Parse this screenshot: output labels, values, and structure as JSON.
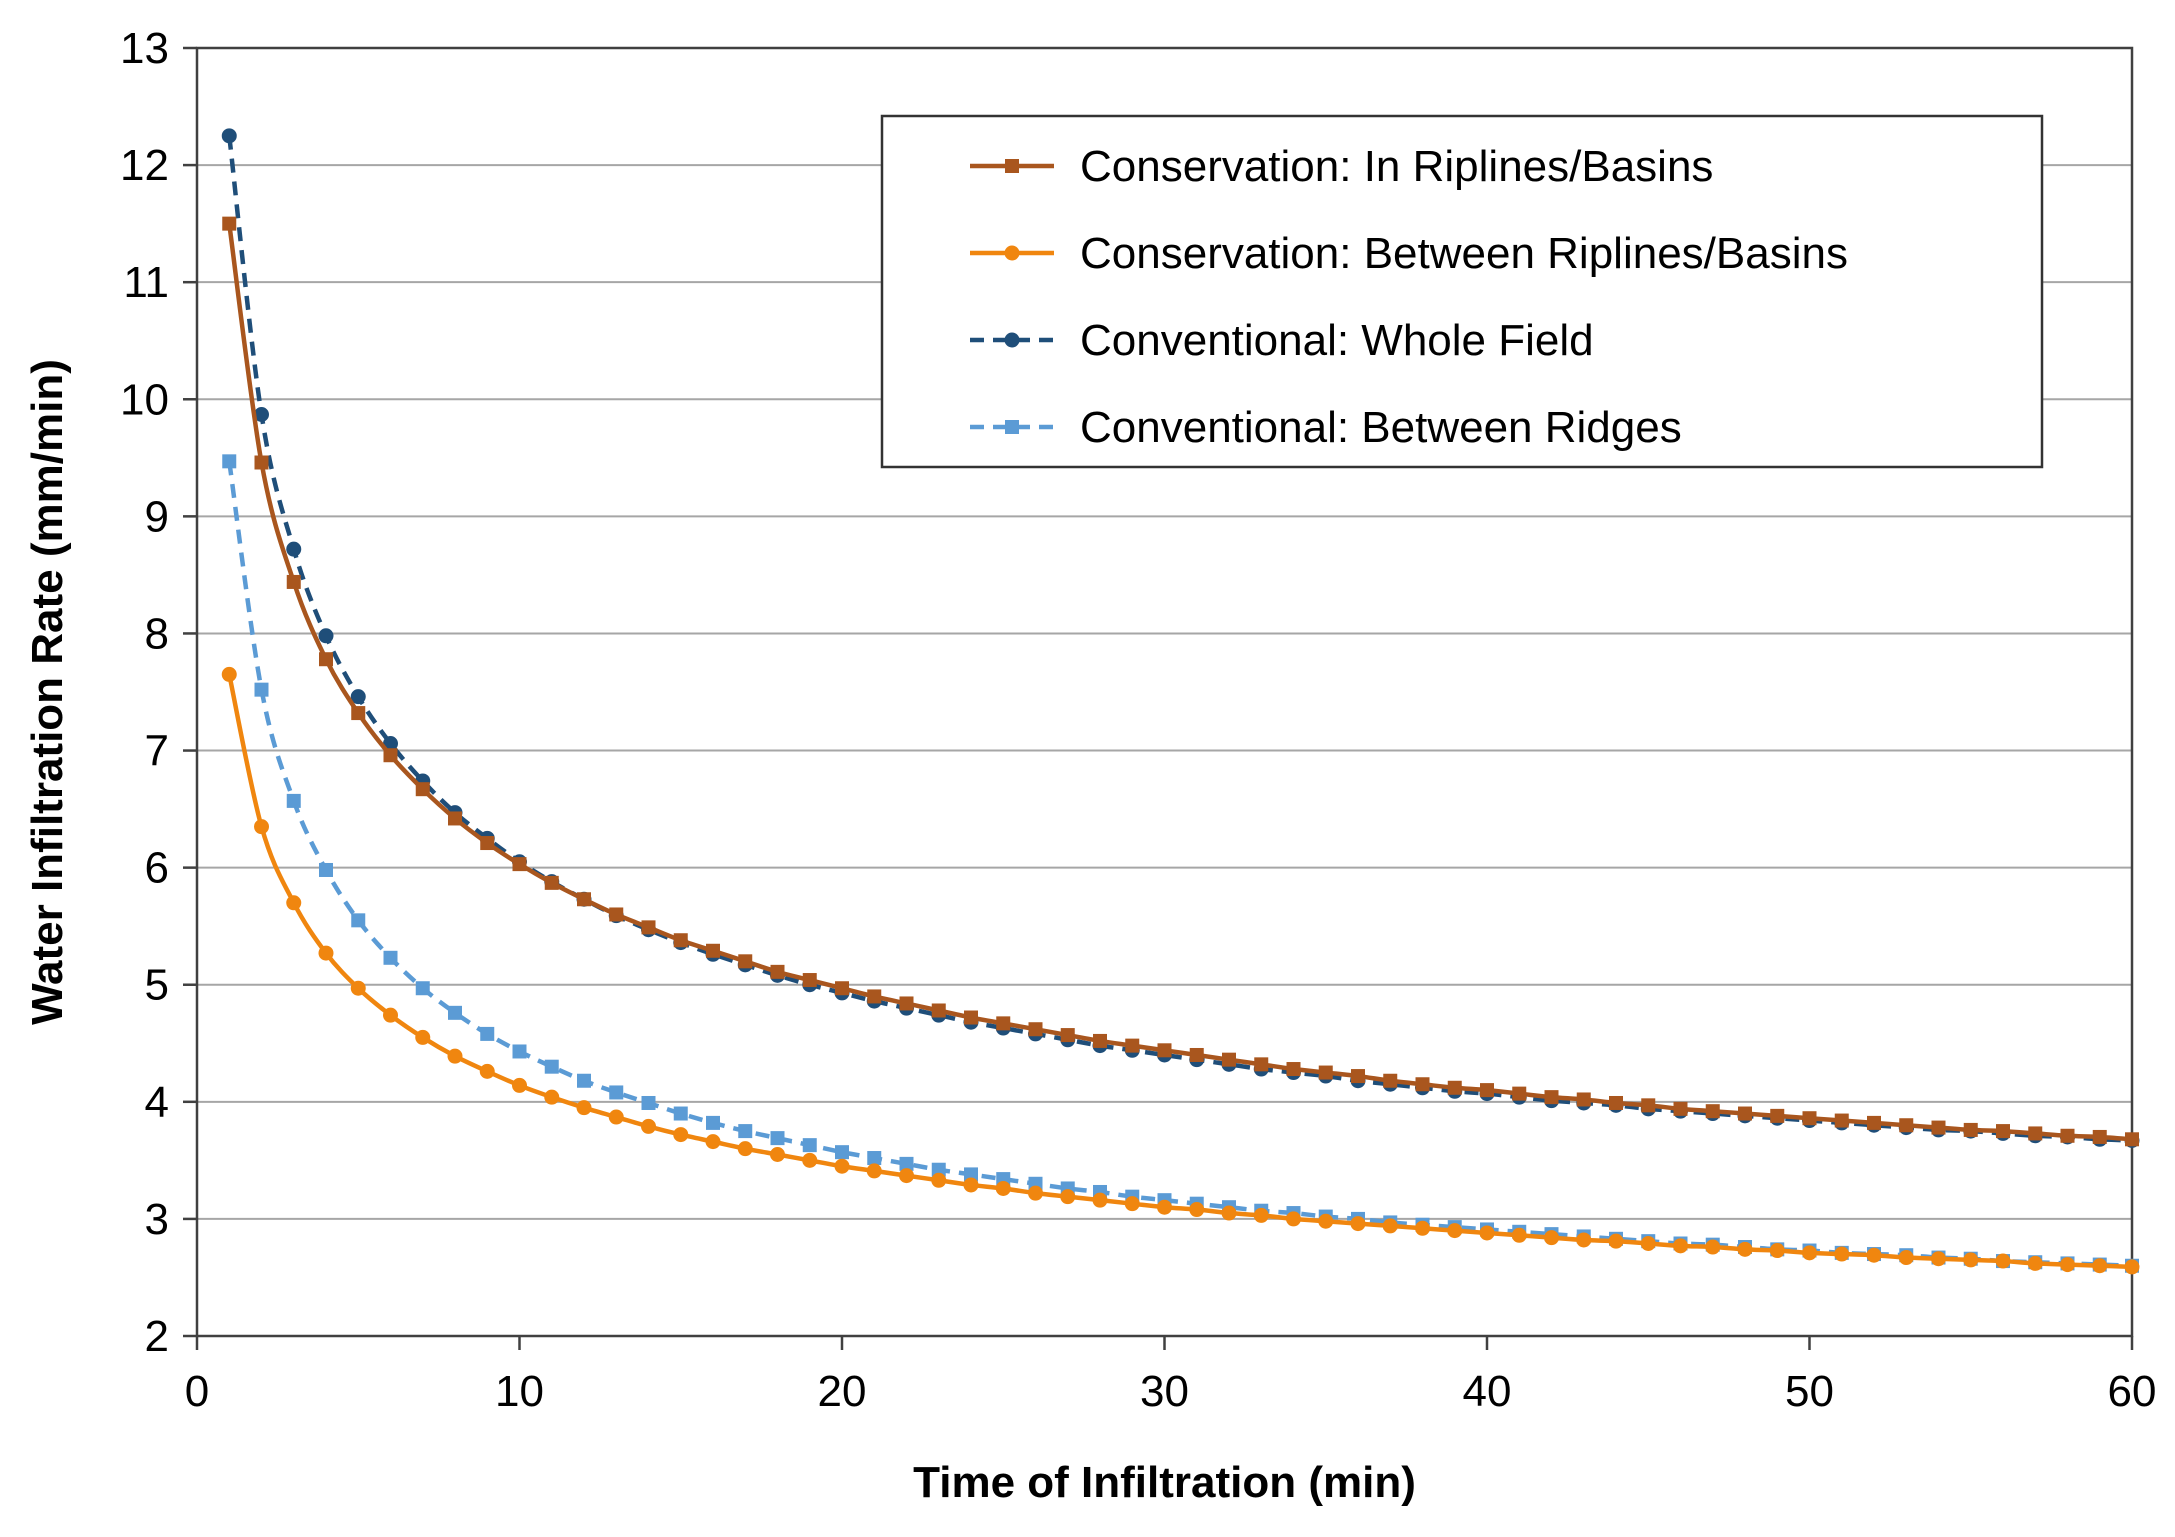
{
  "chart_data": {
    "type": "line",
    "title": "",
    "xlabel": "Time of Infiltration (min)",
    "ylabel": "Water Infiltration Rate (mm/min)",
    "xlim": [
      0,
      60
    ],
    "ylim": [
      2,
      13
    ],
    "xticks": [
      0,
      10,
      20,
      30,
      40,
      50,
      60
    ],
    "yticks": [
      2,
      3,
      4,
      5,
      6,
      7,
      8,
      9,
      10,
      11,
      12,
      13
    ],
    "grid": "horizontal",
    "legend_position": "top-right",
    "x": [
      1,
      2,
      3,
      4,
      5,
      6,
      7,
      8,
      9,
      10,
      11,
      12,
      13,
      14,
      15,
      16,
      17,
      18,
      19,
      20,
      21,
      22,
      23,
      24,
      25,
      26,
      27,
      28,
      29,
      30,
      31,
      32,
      33,
      34,
      35,
      36,
      37,
      38,
      39,
      40,
      41,
      42,
      43,
      44,
      45,
      46,
      47,
      48,
      49,
      50,
      51,
      52,
      53,
      54,
      55,
      56,
      57,
      58,
      59,
      60
    ],
    "series": [
      {
        "name": "Conservation: In Riplines/Basins",
        "color": "#a9561e",
        "dashed": false,
        "marker": "square",
        "values": [
          11.5,
          9.46,
          8.44,
          7.78,
          7.32,
          6.96,
          6.67,
          6.42,
          6.21,
          6.03,
          5.87,
          5.73,
          5.6,
          5.49,
          5.38,
          5.29,
          5.2,
          5.11,
          5.04,
          4.97,
          4.9,
          4.84,
          4.78,
          4.72,
          4.67,
          4.62,
          4.57,
          4.52,
          4.48,
          4.44,
          4.4,
          4.36,
          4.32,
          4.28,
          4.25,
          4.22,
          4.18,
          4.15,
          4.12,
          4.1,
          4.07,
          4.04,
          4.02,
          3.99,
          3.97,
          3.94,
          3.92,
          3.9,
          3.88,
          3.86,
          3.84,
          3.82,
          3.8,
          3.78,
          3.76,
          3.75,
          3.73,
          3.71,
          3.7,
          3.68
        ]
      },
      {
        "name": "Conservation: Between Riplines/Basins",
        "color": "#f0860f",
        "dashed": false,
        "marker": "circle",
        "values": [
          7.65,
          6.35,
          5.7,
          5.27,
          4.97,
          4.74,
          4.55,
          4.39,
          4.26,
          4.14,
          4.04,
          3.95,
          3.87,
          3.79,
          3.72,
          3.66,
          3.6,
          3.55,
          3.5,
          3.45,
          3.41,
          3.37,
          3.33,
          3.29,
          3.26,
          3.22,
          3.19,
          3.16,
          3.13,
          3.1,
          3.08,
          3.05,
          3.03,
          3.0,
          2.98,
          2.96,
          2.94,
          2.92,
          2.9,
          2.88,
          2.86,
          2.84,
          2.82,
          2.81,
          2.79,
          2.77,
          2.76,
          2.74,
          2.73,
          2.71,
          2.7,
          2.69,
          2.67,
          2.66,
          2.65,
          2.64,
          2.62,
          2.61,
          2.6,
          2.59
        ]
      },
      {
        "name": "Conventional: Whole Field",
        "color": "#1f4e79",
        "dashed": true,
        "marker": "circle",
        "values": [
          12.25,
          9.87,
          8.72,
          7.98,
          7.46,
          7.06,
          6.74,
          6.47,
          6.25,
          6.05,
          5.88,
          5.73,
          5.59,
          5.47,
          5.36,
          5.26,
          5.17,
          5.08,
          5.0,
          4.93,
          4.86,
          4.8,
          4.74,
          4.68,
          4.63,
          4.58,
          4.53,
          4.48,
          4.44,
          4.4,
          4.36,
          4.32,
          4.28,
          4.25,
          4.22,
          4.18,
          4.15,
          4.12,
          4.09,
          4.07,
          4.04,
          4.01,
          3.99,
          3.97,
          3.94,
          3.92,
          3.9,
          3.88,
          3.86,
          3.84,
          3.82,
          3.8,
          3.78,
          3.76,
          3.75,
          3.73,
          3.71,
          3.7,
          3.68,
          3.67
        ]
      },
      {
        "name": "Conventional: Between Ridges",
        "color": "#5b9bd5",
        "dashed": true,
        "marker": "square",
        "values": [
          9.47,
          7.52,
          6.57,
          5.98,
          5.55,
          5.23,
          4.97,
          4.76,
          4.58,
          4.43,
          4.3,
          4.18,
          4.08,
          3.99,
          3.9,
          3.82,
          3.75,
          3.69,
          3.63,
          3.57,
          3.52,
          3.47,
          3.42,
          3.38,
          3.34,
          3.3,
          3.26,
          3.23,
          3.19,
          3.16,
          3.13,
          3.1,
          3.07,
          3.05,
          3.02,
          3.0,
          2.97,
          2.95,
          2.93,
          2.91,
          2.89,
          2.87,
          2.85,
          2.83,
          2.81,
          2.79,
          2.78,
          2.76,
          2.74,
          2.73,
          2.71,
          2.7,
          2.69,
          2.67,
          2.66,
          2.64,
          2.63,
          2.62,
          2.61,
          2.6
        ]
      }
    ]
  }
}
